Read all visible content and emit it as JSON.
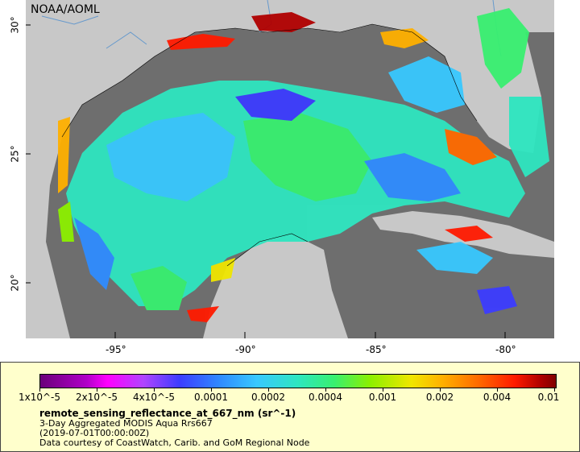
{
  "map": {
    "credit": "NOAA/AOML",
    "lon_ticks": [
      "-95°",
      "-90°",
      "-85°",
      "-80°"
    ],
    "lat_ticks": [
      "30°",
      "25°",
      "20°"
    ]
  },
  "legend": {
    "colorbar_labels": [
      "1x10^-5",
      "2x10^-5",
      "4x10^-5",
      "0.0001",
      "0.0002",
      "0.0004",
      "0.001",
      "0.002",
      "0.004",
      "0.01"
    ],
    "variable": "remote_sensing_reflectance_at_667_nm (sr^-1)",
    "dataset": "3-Day Aggregated MODIS Aqua Rrs667",
    "time": "(2019-07-01T00:00:00Z)",
    "source": "Data courtesy of CoastWatch, Carib. and GoM Regional Node"
  },
  "colors": {
    "land": "#c8c8c8",
    "no_data": "#6e6e6e",
    "panel": "#ffffcc"
  }
}
